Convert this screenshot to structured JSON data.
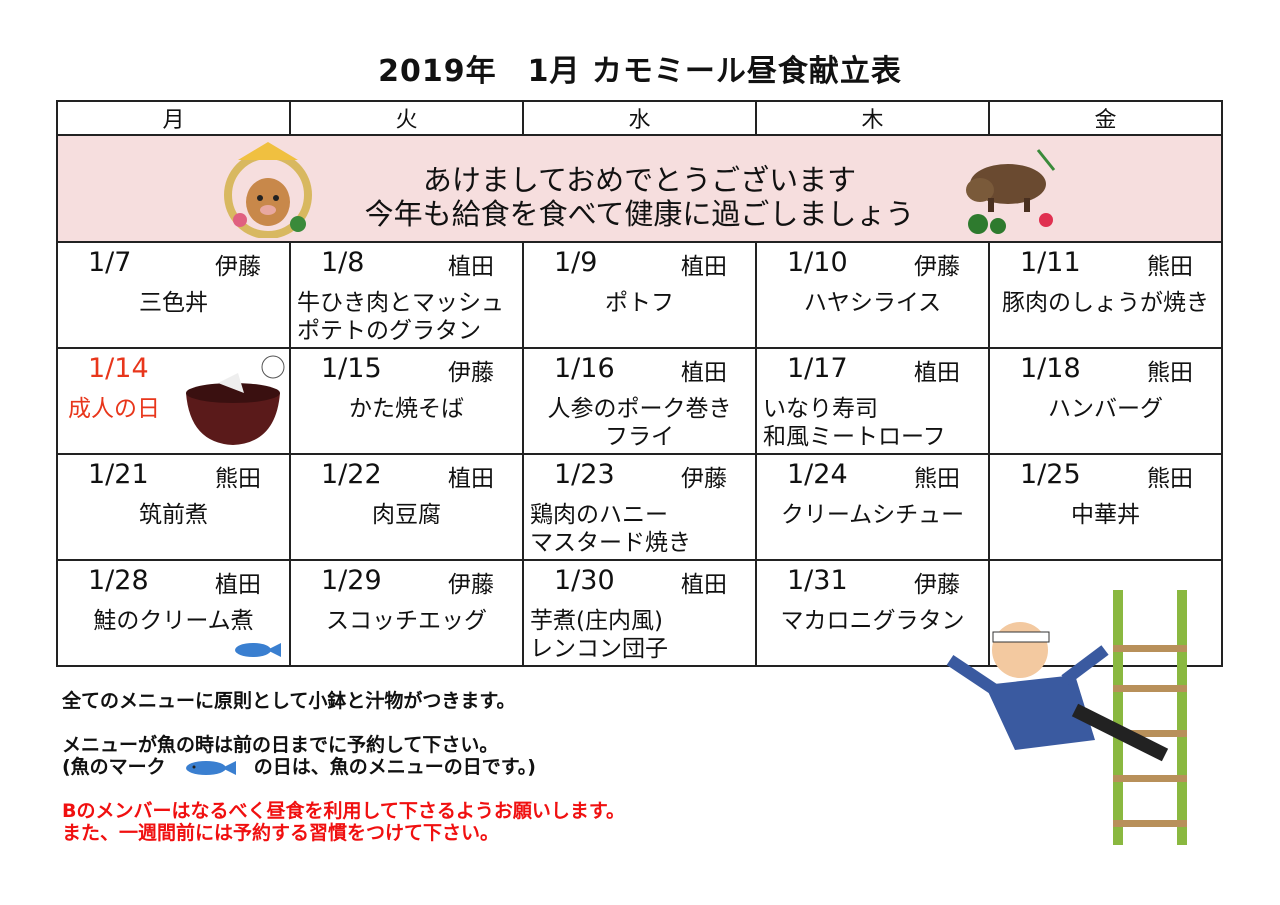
{
  "title": "2019年　1月 カモミール昼食献立表",
  "weekdays": [
    "月",
    "火",
    "水",
    "木",
    "金"
  ],
  "banner": {
    "line1": "あけましておめでとうございます",
    "line2": "今年も給食を食べて健康に過ごしましょう"
  },
  "weeks": [
    [
      {
        "date": "1/7",
        "staff": "伊藤",
        "menu": "三色丼"
      },
      {
        "date": "1/8",
        "staff": "植田",
        "menu": "牛ひき肉とマッシュ\nポテトのグラタン"
      },
      {
        "date": "1/9",
        "staff": "植田",
        "menu": "ポトフ"
      },
      {
        "date": "1/10",
        "staff": "伊藤",
        "menu": "ハヤシライス"
      },
      {
        "date": "1/11",
        "staff": "熊田",
        "menu": "豚肉のしょうが焼き"
      }
    ],
    [
      {
        "date": "1/14",
        "staff": "",
        "menu": "成人の日",
        "holiday": true
      },
      {
        "date": "1/15",
        "staff": "伊藤",
        "menu": "かた焼そば"
      },
      {
        "date": "1/16",
        "staff": "植田",
        "menu": "人参のポーク巻き\nフライ"
      },
      {
        "date": "1/17",
        "staff": "植田",
        "menu": "いなり寿司\n和風ミートローフ"
      },
      {
        "date": "1/18",
        "staff": "熊田",
        "menu": "ハンバーグ"
      }
    ],
    [
      {
        "date": "1/21",
        "staff": "熊田",
        "menu": "筑前煮"
      },
      {
        "date": "1/22",
        "staff": "植田",
        "menu": "肉豆腐"
      },
      {
        "date": "1/23",
        "staff": "伊藤",
        "menu": "鶏肉のハニー\nマスタード焼き"
      },
      {
        "date": "1/24",
        "staff": "熊田",
        "menu": "クリームシチュー"
      },
      {
        "date": "1/25",
        "staff": "熊田",
        "menu": "中華丼"
      }
    ],
    [
      {
        "date": "1/28",
        "staff": "植田",
        "menu": "鮭のクリーム煮",
        "fish": true
      },
      {
        "date": "1/29",
        "staff": "伊藤",
        "menu": "スコッチエッグ"
      },
      {
        "date": "1/30",
        "staff": "植田",
        "menu": "芋煮(庄内風)\nレンコン団子"
      },
      {
        "date": "1/31",
        "staff": "伊藤",
        "menu": "マカロニグラタン"
      },
      {
        "date": "",
        "staff": "",
        "menu": ""
      }
    ]
  ],
  "notes": {
    "line1": "全てのメニューに原則として小鉢と汁物がつきます。",
    "line2": "メニューが魚の時は前の日までに予約して下さい。",
    "line3a": "(魚のマーク",
    "line3b": "の日は、魚のメニューの日です。)",
    "red1": "Bのメンバーはなるべく昼食を利用して下さるようお願いします。",
    "red2": "また、一週間前には予約する習慣をつけて下さい。"
  },
  "colors": {
    "banner_bg": "#f6dede",
    "holiday": "#e8361b",
    "notice_red": "#f01010",
    "fish": "#3a7fd0"
  }
}
